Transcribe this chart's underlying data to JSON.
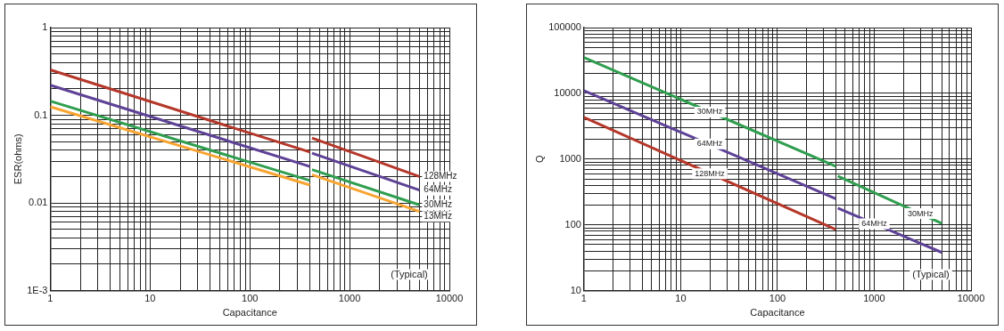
{
  "chart_data": [
    {
      "type": "line",
      "xlabel": "Capacitance",
      "ylabel": "ESR(ohms)",
      "log": "xy",
      "grid": true,
      "legend": false,
      "marker": "none",
      "line_style": "solid",
      "xlim": [
        1,
        10000
      ],
      "ylim": [
        0.001,
        1
      ],
      "xticks": [
        1,
        {
          "value": 2,
          "label": null
        },
        {
          "value": 3,
          "label": null
        },
        {
          "value": 4,
          "label": null
        },
        {
          "value": 5,
          "label": null
        },
        {
          "value": 6,
          "label": null
        },
        {
          "value": 7,
          "label": null
        },
        {
          "value": 8,
          "label": null
        },
        {
          "value": 9,
          "label": null
        },
        10,
        {
          "value": 20,
          "label": null
        },
        {
          "value": 30,
          "label": null
        },
        {
          "value": 40,
          "label": null
        },
        {
          "value": 50,
          "label": null
        },
        {
          "value": 60,
          "label": null
        },
        {
          "value": 70,
          "label": null
        },
        {
          "value": 80,
          "label": null
        },
        {
          "value": 90,
          "label": null
        },
        100,
        {
          "value": 200,
          "label": null
        },
        {
          "value": 300,
          "label": null
        },
        {
          "value": 400,
          "label": null
        },
        {
          "value": 500,
          "label": null
        },
        {
          "value": 600,
          "label": null
        },
        {
          "value": 700,
          "label": null
        },
        {
          "value": 800,
          "label": null
        },
        {
          "value": 900,
          "label": null
        },
        1000,
        {
          "value": 2000,
          "label": null
        },
        {
          "value": 3000,
          "label": null
        },
        {
          "value": 4000,
          "label": null
        },
        {
          "value": 5000,
          "label": null
        },
        {
          "value": 6000,
          "label": null
        },
        {
          "value": 7000,
          "label": null
        },
        {
          "value": 8000,
          "label": null
        },
        {
          "value": 9000,
          "label": null
        },
        10000
      ],
      "yticks": [
        {
          "value": 0.001,
          "label": "1E-3"
        },
        {
          "value": 0.002,
          "label": null
        },
        {
          "value": 0.003,
          "label": null
        },
        {
          "value": 0.004,
          "label": null
        },
        {
          "value": 0.005,
          "label": null
        },
        {
          "value": 0.006,
          "label": null
        },
        {
          "value": 0.007,
          "label": null
        },
        {
          "value": 0.008,
          "label": null
        },
        {
          "value": 0.009,
          "label": null
        },
        0.01,
        {
          "value": 0.02,
          "label": null
        },
        {
          "value": 0.03,
          "label": null
        },
        {
          "value": 0.04,
          "label": null
        },
        {
          "value": 0.05,
          "label": null
        },
        {
          "value": 0.06,
          "label": null
        },
        {
          "value": 0.07,
          "label": null
        },
        {
          "value": 0.08,
          "label": null
        },
        {
          "value": 0.09,
          "label": null
        },
        0.1,
        {
          "value": 0.2,
          "label": null
        },
        {
          "value": 0.3,
          "label": null
        },
        {
          "value": 0.4,
          "label": null
        },
        {
          "value": 0.5,
          "label": null
        },
        {
          "value": 0.6,
          "label": null
        },
        {
          "value": 0.7,
          "label": null
        },
        {
          "value": 0.8,
          "label": null
        },
        {
          "value": 0.9,
          "label": null
        },
        1
      ],
      "x": [
        1,
        400,
        410,
        420,
        5000
      ],
      "series": [
        {
          "name": "128MHz",
          "color": "#b5372a",
          "values": [
            0.33,
            0.038,
            null,
            0.055,
            0.02
          ]
        },
        {
          "name": "64MHz",
          "color": "#5e4296",
          "values": [
            0.22,
            0.026,
            null,
            0.037,
            0.014
          ]
        },
        {
          "name": "30MHz",
          "color": "#2f9e4f",
          "values": [
            0.145,
            0.018,
            null,
            0.024,
            0.0095
          ]
        },
        {
          "name": "13MHz",
          "color": "#f7a531",
          "values": [
            0.125,
            0.016,
            null,
            0.021,
            0.008
          ]
        }
      ],
      "annotations": [
        "(Typical)"
      ]
    },
    {
      "type": "line",
      "xlabel": "Capacitance",
      "ylabel": "Q",
      "log": "xy",
      "grid": true,
      "legend": false,
      "marker": "none",
      "line_style": "solid",
      "xlim": [
        1,
        10000
      ],
      "ylim": [
        10,
        100000
      ],
      "xticks": [
        1,
        {
          "value": 2,
          "label": null
        },
        {
          "value": 3,
          "label": null
        },
        {
          "value": 4,
          "label": null
        },
        {
          "value": 5,
          "label": null
        },
        {
          "value": 6,
          "label": null
        },
        {
          "value": 7,
          "label": null
        },
        {
          "value": 8,
          "label": null
        },
        {
          "value": 9,
          "label": null
        },
        10,
        {
          "value": 20,
          "label": null
        },
        {
          "value": 30,
          "label": null
        },
        {
          "value": 40,
          "label": null
        },
        {
          "value": 50,
          "label": null
        },
        {
          "value": 60,
          "label": null
        },
        {
          "value": 70,
          "label": null
        },
        {
          "value": 80,
          "label": null
        },
        {
          "value": 90,
          "label": null
        },
        100,
        {
          "value": 200,
          "label": null
        },
        {
          "value": 300,
          "label": null
        },
        {
          "value": 400,
          "label": null
        },
        {
          "value": 500,
          "label": null
        },
        {
          "value": 600,
          "label": null
        },
        {
          "value": 700,
          "label": null
        },
        {
          "value": 800,
          "label": null
        },
        {
          "value": 900,
          "label": null
        },
        1000,
        {
          "value": 2000,
          "label": null
        },
        {
          "value": 3000,
          "label": null
        },
        {
          "value": 4000,
          "label": null
        },
        {
          "value": 5000,
          "label": null
        },
        {
          "value": 6000,
          "label": null
        },
        {
          "value": 7000,
          "label": null
        },
        {
          "value": 8000,
          "label": null
        },
        {
          "value": 9000,
          "label": null
        },
        10000
      ],
      "yticks": [
        10,
        {
          "value": 20,
          "label": null
        },
        {
          "value": 30,
          "label": null
        },
        {
          "value": 40,
          "label": null
        },
        {
          "value": 50,
          "label": null
        },
        {
          "value": 60,
          "label": null
        },
        {
          "value": 70,
          "label": null
        },
        {
          "value": 80,
          "label": null
        },
        {
          "value": 90,
          "label": null
        },
        100,
        {
          "value": 200,
          "label": null
        },
        {
          "value": 300,
          "label": null
        },
        {
          "value": 400,
          "label": null
        },
        {
          "value": 500,
          "label": null
        },
        {
          "value": 600,
          "label": null
        },
        {
          "value": 700,
          "label": null
        },
        {
          "value": 800,
          "label": null
        },
        {
          "value": 900,
          "label": null
        },
        1000,
        {
          "value": 2000,
          "label": null
        },
        {
          "value": 3000,
          "label": null
        },
        {
          "value": 4000,
          "label": null
        },
        {
          "value": 5000,
          "label": null
        },
        {
          "value": 6000,
          "label": null
        },
        {
          "value": 7000,
          "label": null
        },
        {
          "value": 8000,
          "label": null
        },
        {
          "value": 9000,
          "label": null
        },
        10000,
        {
          "value": 20000,
          "label": null
        },
        {
          "value": 30000,
          "label": null
        },
        {
          "value": 40000,
          "label": null
        },
        {
          "value": 50000,
          "label": null
        },
        {
          "value": 60000,
          "label": null
        },
        {
          "value": 70000,
          "label": null
        },
        {
          "value": 80000,
          "label": null
        },
        {
          "value": 90000,
          "label": null
        },
        100000
      ],
      "x": [
        1,
        400,
        410,
        420,
        5000
      ],
      "series": [
        {
          "color": "#2f9e4f",
          "values": [
            35000,
            780,
            null,
            550,
            105
          ]
        },
        {
          "color": "#5e4296",
          "values": [
            11000,
            250,
            null,
            180,
            38
          ]
        },
        {
          "color": "#b5372a",
          "values": [
            4300,
            85,
            null,
            null,
            null
          ]
        }
      ],
      "annotations": [
        {
          "text": "30MHz",
          "x": 20,
          "y": 5200
        },
        {
          "text": "64MHz",
          "x": 20,
          "y": 1700
        },
        {
          "text": "128MHz",
          "x": 20,
          "y": 600
        },
        {
          "text": "30MHz",
          "x": 3000,
          "y": 148
        },
        {
          "text": "64MHz",
          "x": 1000,
          "y": 104
        },
        "(Typical)"
      ]
    }
  ]
}
